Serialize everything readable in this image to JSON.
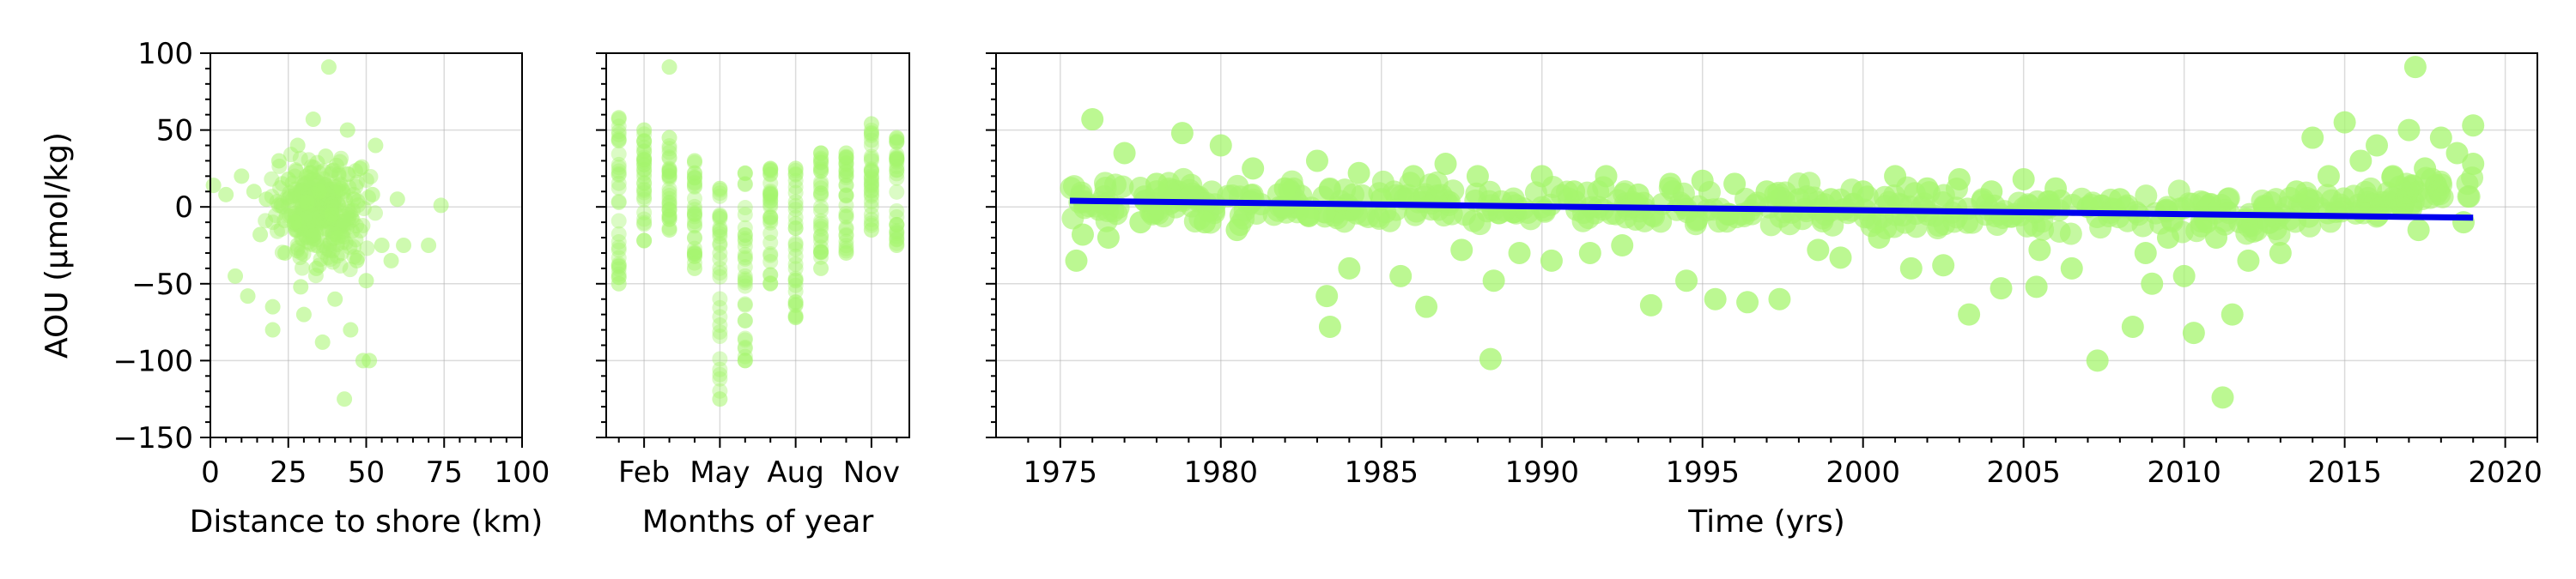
{
  "colors": {
    "points": "#a6f56e",
    "trend": "#0000ee",
    "grid": "#b0b0b0",
    "axis": "#000000"
  },
  "chart_data": [
    {
      "type": "scatter",
      "id": "distance",
      "xlabel": "Distance to shore (km)",
      "ylabel": "AOU (µmol/kg)",
      "xlim": [
        0,
        100
      ],
      "ylim": [
        -150,
        100
      ],
      "xticks": [
        0,
        25,
        50,
        75,
        100
      ],
      "xtick_labels": [
        "0",
        "25",
        "50",
        "75",
        "100"
      ],
      "yticks": [
        -150,
        -100,
        -50,
        0,
        50,
        100
      ],
      "ytick_labels": [
        "−150",
        "−100",
        "−50",
        "0",
        "50",
        "100"
      ],
      "grid": true,
      "points": [
        [
          1,
          14
        ],
        [
          5,
          8
        ],
        [
          8,
          -45
        ],
        [
          10,
          20
        ],
        [
          12,
          -58
        ],
        [
          14,
          10
        ],
        [
          16,
          -18
        ],
        [
          18,
          5
        ],
        [
          20,
          -80
        ],
        [
          20,
          -65
        ],
        [
          22,
          30
        ],
        [
          24,
          -30
        ],
        [
          25,
          18
        ],
        [
          27,
          -10
        ],
        [
          28,
          40
        ],
        [
          29,
          -52
        ],
        [
          30,
          -70
        ],
        [
          31,
          3
        ],
        [
          32,
          22
        ],
        [
          33,
          57
        ],
        [
          34,
          -40
        ],
        [
          35,
          10
        ],
        [
          36,
          -88
        ],
        [
          37,
          33
        ],
        [
          38,
          91
        ],
        [
          39,
          -5
        ],
        [
          40,
          -60
        ],
        [
          41,
          -20
        ],
        [
          42,
          12
        ],
        [
          43,
          -125
        ],
        [
          44,
          50
        ],
        [
          45,
          -80
        ],
        [
          46,
          5
        ],
        [
          47,
          -35
        ],
        [
          48,
          25
        ],
        [
          49,
          -100
        ],
        [
          50,
          -48
        ],
        [
          51,
          -100
        ],
        [
          52,
          8
        ],
        [
          53,
          40
        ],
        [
          55,
          -25
        ],
        [
          58,
          -35
        ],
        [
          60,
          5
        ],
        [
          62,
          -25
        ],
        [
          70,
          -25
        ],
        [
          74,
          1
        ]
      ],
      "cluster": {
        "x_range": [
          15,
          55
        ],
        "y_range": [
          -45,
          45
        ],
        "count": 320
      }
    },
    {
      "type": "scatter",
      "id": "months",
      "xlabel": "Months of year",
      "xlim": [
        0.5,
        12.5
      ],
      "ylim": [
        -150,
        100
      ],
      "xticks": [
        2,
        5,
        8,
        11
      ],
      "xtick_labels": [
        "Feb",
        "May",
        "Aug",
        "Nov"
      ],
      "grid": true,
      "monthly": [
        {
          "month": 1,
          "min": -50,
          "max": 58
        },
        {
          "month": 2,
          "min": -22,
          "max": 50
        },
        {
          "month": 3,
          "min": -15,
          "max": 45
        },
        {
          "month": 4,
          "min": -40,
          "max": 30
        },
        {
          "month": 5,
          "min": -125,
          "max": 12
        },
        {
          "month": 6,
          "min": -100,
          "max": 22
        },
        {
          "month": 7,
          "min": -50,
          "max": 25
        },
        {
          "month": 8,
          "min": -72,
          "max": 25
        },
        {
          "month": 9,
          "min": -40,
          "max": 35
        },
        {
          "month": 10,
          "min": -30,
          "max": 35
        },
        {
          "month": 11,
          "min": -15,
          "max": 54
        },
        {
          "month": 12,
          "min": -25,
          "max": 45
        }
      ],
      "outliers": [
        [
          3,
          91
        ]
      ]
    },
    {
      "type": "scatter",
      "id": "time",
      "xlabel": "Time (yrs)",
      "xlim": [
        1973,
        2021
      ],
      "ylim": [
        -150,
        100
      ],
      "xticks": [
        1975,
        1980,
        1985,
        1990,
        1995,
        2000,
        2005,
        2010,
        2015,
        2020
      ],
      "xtick_labels": [
        "1975",
        "1980",
        "1985",
        "1990",
        "1995",
        "2000",
        "2005",
        "2010",
        "2015",
        "2020"
      ],
      "grid": true,
      "points": [
        [
          1975.5,
          -35
        ],
        [
          1975.7,
          -18
        ],
        [
          1976,
          57
        ],
        [
          1976.5,
          -20
        ],
        [
          1977,
          35
        ],
        [
          1977.5,
          -10
        ],
        [
          1978,
          15
        ],
        [
          1978.8,
          48
        ],
        [
          1979.5,
          -10
        ],
        [
          1980,
          40
        ],
        [
          1980.5,
          -15
        ],
        [
          1981,
          25
        ],
        [
          1982,
          12
        ],
        [
          1982.7,
          -5
        ],
        [
          1983,
          30
        ],
        [
          1983.3,
          -58
        ],
        [
          1983.4,
          -78
        ],
        [
          1984,
          -40
        ],
        [
          1984.3,
          22
        ],
        [
          1985,
          5
        ],
        [
          1985.6,
          -45
        ],
        [
          1986,
          20
        ],
        [
          1986.4,
          -65
        ],
        [
          1987,
          28
        ],
        [
          1987.5,
          -28
        ],
        [
          1988,
          20
        ],
        [
          1988.4,
          -99
        ],
        [
          1988.5,
          -48
        ],
        [
          1989.3,
          -30
        ],
        [
          1990,
          20
        ],
        [
          1990.3,
          -35
        ],
        [
          1991,
          10
        ],
        [
          1991.5,
          -30
        ],
        [
          1992,
          20
        ],
        [
          1992.5,
          -25
        ],
        [
          1993,
          8
        ],
        [
          1993.4,
          -64
        ],
        [
          1994,
          15
        ],
        [
          1994.5,
          -48
        ],
        [
          1995,
          17
        ],
        [
          1995.4,
          -60
        ],
        [
          1996,
          15
        ],
        [
          1996.4,
          -62
        ],
        [
          1997,
          10
        ],
        [
          1997.4,
          -60
        ],
        [
          1998,
          5
        ],
        [
          1998.6,
          -28
        ],
        [
          1999,
          5
        ],
        [
          1999.3,
          -33
        ],
        [
          2000,
          10
        ],
        [
          2000.5,
          -20
        ],
        [
          2001,
          20
        ],
        [
          2001.5,
          -40
        ],
        [
          2002,
          12
        ],
        [
          2002.5,
          -38
        ],
        [
          2003,
          18
        ],
        [
          2003.3,
          -70
        ],
        [
          2004,
          10
        ],
        [
          2004.3,
          -53
        ],
        [
          2005,
          18
        ],
        [
          2005.5,
          -28
        ],
        [
          2005.4,
          -52
        ],
        [
          2006,
          12
        ],
        [
          2006.5,
          -40
        ],
        [
          2007,
          0
        ],
        [
          2007.3,
          -100
        ],
        [
          2008,
          5
        ],
        [
          2008.4,
          -78
        ],
        [
          2008.8,
          -30
        ],
        [
          2009,
          -50
        ],
        [
          2009.5,
          -20
        ],
        [
          2010,
          -45
        ],
        [
          2010.3,
          -82
        ],
        [
          2010.7,
          -10
        ],
        [
          2011,
          -20
        ],
        [
          2011.2,
          -124
        ],
        [
          2011.5,
          -70
        ],
        [
          2012,
          -35
        ],
        [
          2012.5,
          0
        ],
        [
          2013,
          -30
        ],
        [
          2013.5,
          10
        ],
        [
          2014,
          45
        ],
        [
          2014.5,
          20
        ],
        [
          2015,
          55
        ],
        [
          2015.5,
          30
        ],
        [
          2016,
          40
        ],
        [
          2016.5,
          20
        ],
        [
          2017,
          50
        ],
        [
          2017.2,
          91
        ],
        [
          2017.3,
          -15
        ],
        [
          2017.5,
          25
        ],
        [
          2018,
          45
        ],
        [
          2018.5,
          35
        ],
        [
          2019,
          53
        ],
        [
          2019,
          28
        ],
        [
          2018.7,
          -10
        ]
      ],
      "trend": {
        "x": [
          1975.3,
          2019.0
        ],
        "y": [
          4,
          -7
        ]
      }
    }
  ]
}
